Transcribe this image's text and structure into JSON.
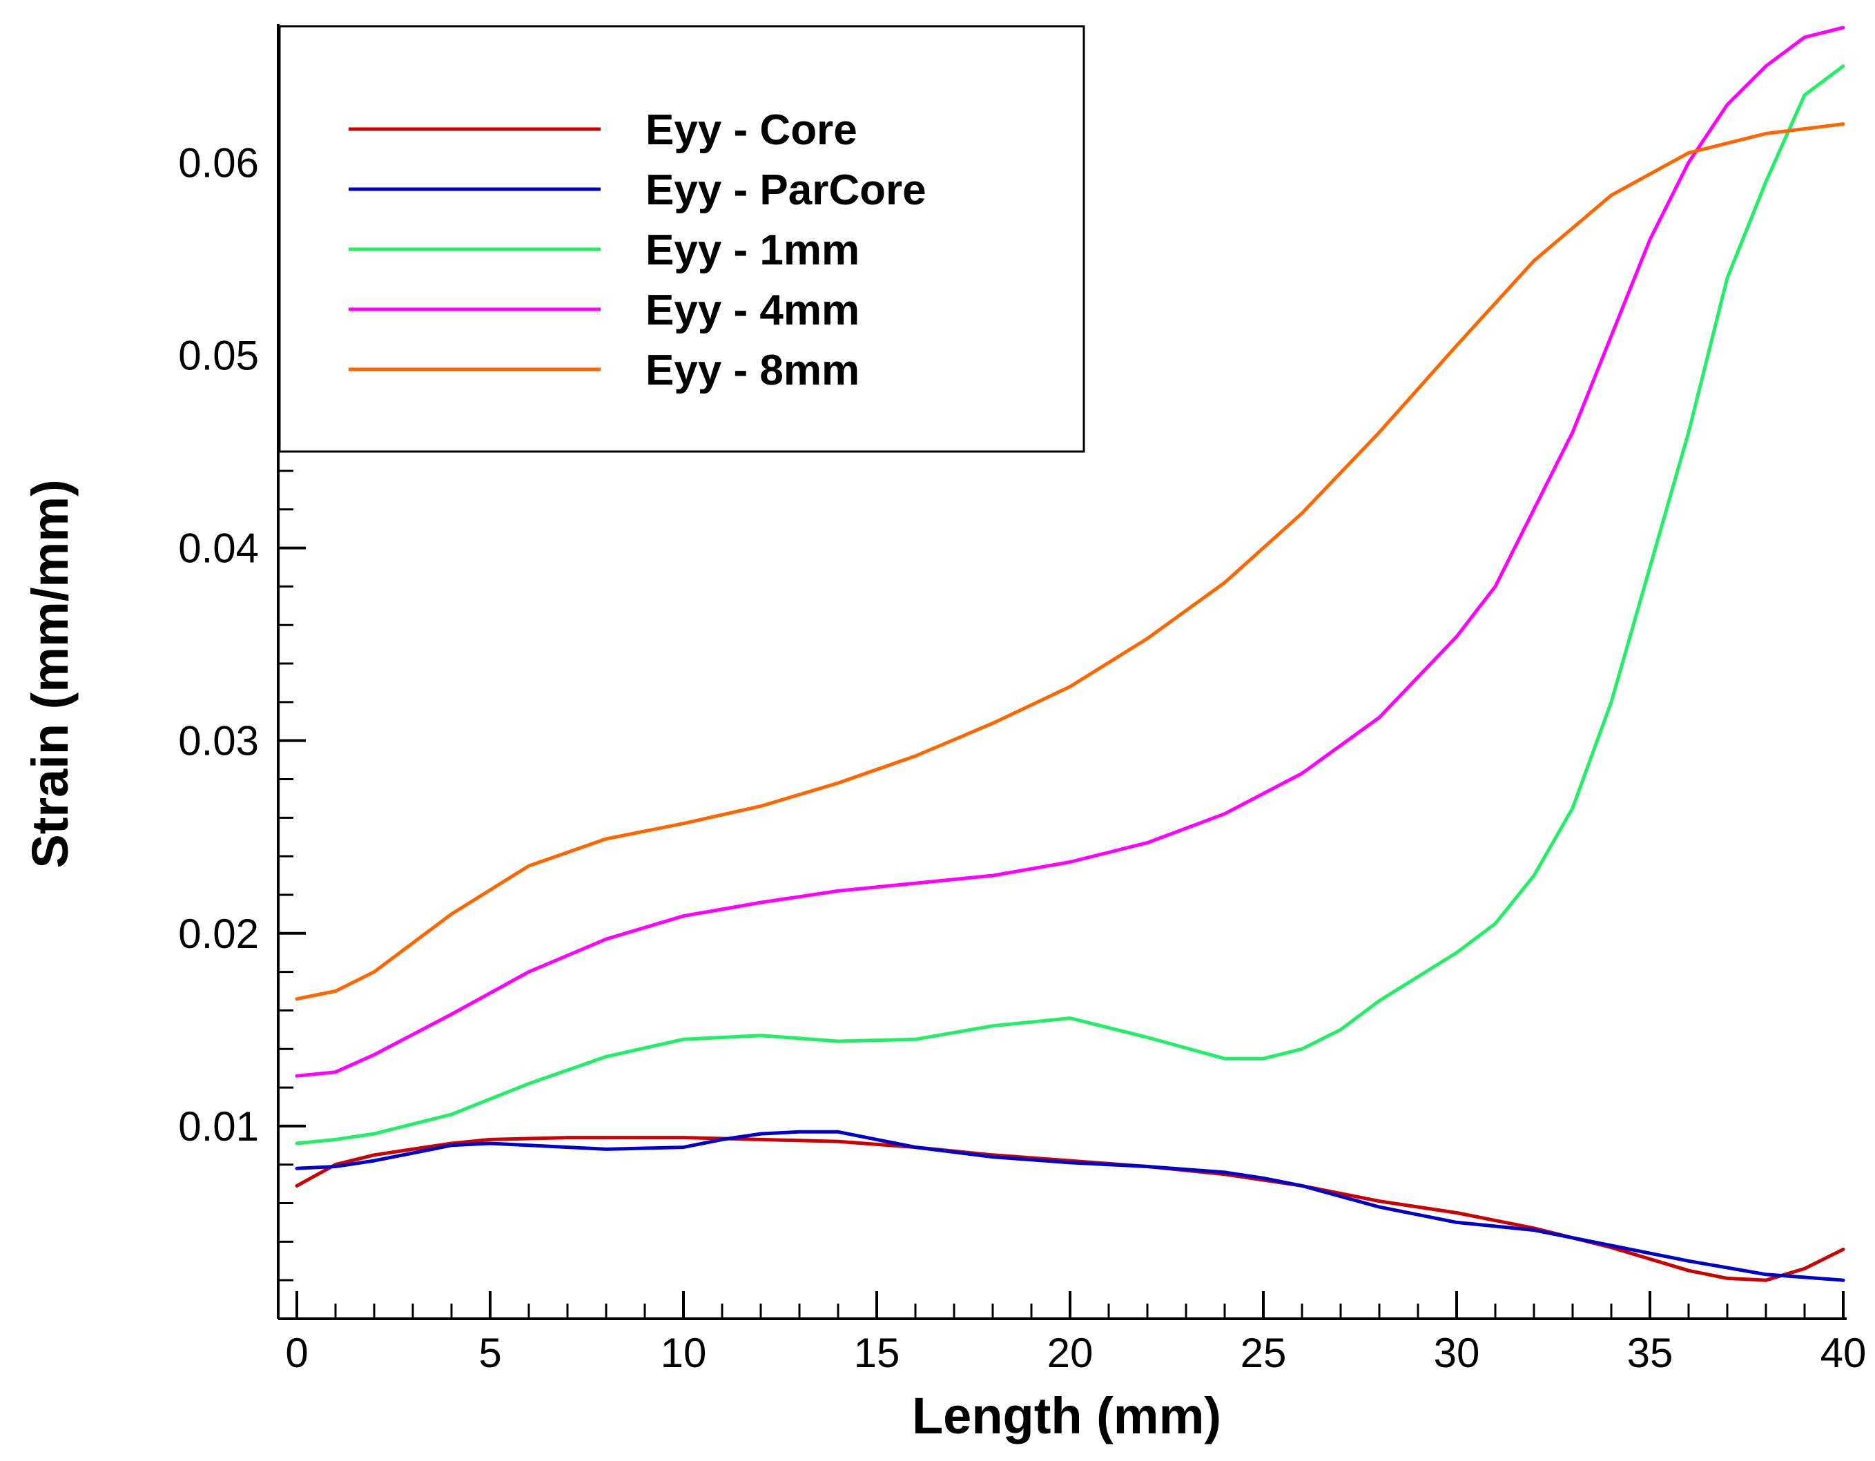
{
  "chart_data": {
    "type": "line",
    "title": "",
    "xlabel": "Length (mm)",
    "ylabel": "Strain (mm/mm)",
    "xlim": [
      0,
      40
    ],
    "ylim": [
      0,
      0.067
    ],
    "x_ticks": [
      0,
      5,
      10,
      15,
      20,
      25,
      30,
      35,
      40
    ],
    "x_tick_labels": [
      "0",
      "5",
      "10",
      "15",
      "20",
      "25",
      "30",
      "35",
      "40"
    ],
    "y_ticks": [
      0.01,
      0.02,
      0.03,
      0.04,
      0.05,
      0.06
    ],
    "y_tick_labels": [
      "0.01",
      "0.02",
      "0.03",
      "0.04",
      "0.05",
      "0.06"
    ],
    "legend_position": "top-left",
    "grid": false,
    "series": [
      {
        "name": "Eyy - Core",
        "color": "#cc0000",
        "points": [
          [
            0,
            0.0069
          ],
          [
            1,
            0.008
          ],
          [
            2,
            0.0085
          ],
          [
            3,
            0.0088
          ],
          [
            4,
            0.0091
          ],
          [
            5,
            0.0093
          ],
          [
            7,
            0.0094
          ],
          [
            10,
            0.0094
          ],
          [
            12,
            0.0093
          ],
          [
            14,
            0.0092
          ],
          [
            16,
            0.0089
          ],
          [
            18,
            0.0085
          ],
          [
            20,
            0.0082
          ],
          [
            22,
            0.0079
          ],
          [
            24,
            0.0075
          ],
          [
            26,
            0.0069
          ],
          [
            28,
            0.0061
          ],
          [
            30,
            0.0055
          ],
          [
            32,
            0.0047
          ],
          [
            34,
            0.0037
          ],
          [
            36,
            0.0025
          ],
          [
            37,
            0.0021
          ],
          [
            38,
            0.002
          ],
          [
            39,
            0.0026
          ],
          [
            40,
            0.0036
          ]
        ]
      },
      {
        "name": "Eyy - ParCore",
        "color": "#0000cc",
        "points": [
          [
            0,
            0.0078
          ],
          [
            1,
            0.0079
          ],
          [
            2,
            0.0082
          ],
          [
            3,
            0.0086
          ],
          [
            4,
            0.009
          ],
          [
            5,
            0.0091
          ],
          [
            6,
            0.009
          ],
          [
            8,
            0.0088
          ],
          [
            10,
            0.0089
          ],
          [
            11,
            0.0093
          ],
          [
            12,
            0.0096
          ],
          [
            13,
            0.0097
          ],
          [
            14,
            0.0097
          ],
          [
            15,
            0.0093
          ],
          [
            16,
            0.0089
          ],
          [
            18,
            0.0084
          ],
          [
            20,
            0.0081
          ],
          [
            22,
            0.0079
          ],
          [
            24,
            0.0076
          ],
          [
            25,
            0.0073
          ],
          [
            26,
            0.0069
          ],
          [
            28,
            0.0058
          ],
          [
            30,
            0.005
          ],
          [
            32,
            0.0046
          ],
          [
            34,
            0.0038
          ],
          [
            36,
            0.003
          ],
          [
            38,
            0.0023
          ],
          [
            40,
            0.002
          ]
        ]
      },
      {
        "name": "Eyy - 1mm",
        "color": "#22ee66",
        "points": [
          [
            0,
            0.0091
          ],
          [
            1,
            0.0093
          ],
          [
            2,
            0.0096
          ],
          [
            4,
            0.0106
          ],
          [
            6,
            0.0122
          ],
          [
            8,
            0.0136
          ],
          [
            10,
            0.0145
          ],
          [
            12,
            0.0147
          ],
          [
            14,
            0.0144
          ],
          [
            16,
            0.0145
          ],
          [
            18,
            0.0152
          ],
          [
            20,
            0.0156
          ],
          [
            22,
            0.0146
          ],
          [
            24,
            0.0135
          ],
          [
            25,
            0.0135
          ],
          [
            26,
            0.014
          ],
          [
            27,
            0.015
          ],
          [
            28,
            0.0165
          ],
          [
            30,
            0.019
          ],
          [
            31,
            0.0205
          ],
          [
            32,
            0.023
          ],
          [
            33,
            0.0265
          ],
          [
            34,
            0.032
          ],
          [
            35,
            0.039
          ],
          [
            36,
            0.046
          ],
          [
            37,
            0.054
          ],
          [
            38,
            0.059
          ],
          [
            39,
            0.0635
          ],
          [
            40,
            0.065
          ]
        ]
      },
      {
        "name": "Eyy - 4mm",
        "color": "#ff00ff",
        "points": [
          [
            0,
            0.0126
          ],
          [
            1,
            0.0128
          ],
          [
            2,
            0.0137
          ],
          [
            4,
            0.0158
          ],
          [
            6,
            0.018
          ],
          [
            8,
            0.0197
          ],
          [
            10,
            0.0209
          ],
          [
            12,
            0.0216
          ],
          [
            14,
            0.0222
          ],
          [
            16,
            0.0226
          ],
          [
            18,
            0.023
          ],
          [
            20,
            0.0237
          ],
          [
            22,
            0.0247
          ],
          [
            24,
            0.0262
          ],
          [
            26,
            0.0283
          ],
          [
            28,
            0.0312
          ],
          [
            30,
            0.0354
          ],
          [
            31,
            0.038
          ],
          [
            32,
            0.042
          ],
          [
            33,
            0.046
          ],
          [
            34,
            0.051
          ],
          [
            35,
            0.056
          ],
          [
            36,
            0.06
          ],
          [
            37,
            0.063
          ],
          [
            38,
            0.065
          ],
          [
            39,
            0.0665
          ],
          [
            40,
            0.067
          ]
        ]
      },
      {
        "name": "Eyy - 8mm",
        "color": "#ff6600",
        "points": [
          [
            0,
            0.0166
          ],
          [
            1,
            0.017
          ],
          [
            2,
            0.018
          ],
          [
            4,
            0.021
          ],
          [
            6,
            0.0235
          ],
          [
            8,
            0.0249
          ],
          [
            10,
            0.0257
          ],
          [
            12,
            0.0266
          ],
          [
            14,
            0.0278
          ],
          [
            16,
            0.0292
          ],
          [
            18,
            0.0309
          ],
          [
            20,
            0.0328
          ],
          [
            22,
            0.0353
          ],
          [
            24,
            0.0382
          ],
          [
            26,
            0.0418
          ],
          [
            28,
            0.046
          ],
          [
            30,
            0.0505
          ],
          [
            32,
            0.0549
          ],
          [
            34,
            0.0583
          ],
          [
            36,
            0.0605
          ],
          [
            38,
            0.0615
          ],
          [
            40,
            0.062
          ]
        ]
      }
    ]
  }
}
